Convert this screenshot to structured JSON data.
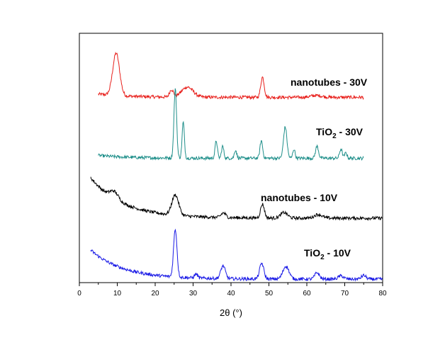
{
  "chart_data": {
    "type": "line",
    "xlabel": "2θ (°)",
    "x_range": [
      0,
      80
    ],
    "x_ticks": [
      0,
      10,
      20,
      30,
      40,
      50,
      60,
      70,
      80
    ],
    "y_ticks_shown": false,
    "grid": false,
    "series": [
      {
        "label_main": "nanotubes - 30V",
        "label_sub": "",
        "label_suffix": "",
        "color": "#e8201c",
        "x_range": [
          5,
          75
        ],
        "baseline_start": 0.55,
        "baseline_end": 0.2,
        "peaks": [
          [
            9.7,
            4.6,
            0.9
          ],
          [
            24.3,
            0.8,
            0.5
          ],
          [
            28.5,
            1.1,
            1.5
          ],
          [
            48.3,
            2.2,
            0.45
          ],
          [
            62.5,
            0.2,
            1.5
          ]
        ]
      },
      {
        "label_main": "TiO",
        "label_sub": "2",
        "label_suffix": " - 30V",
        "color": "#1f8f8a",
        "x_range": [
          5,
          75
        ],
        "baseline_start": 0.5,
        "baseline_end": 0.2,
        "peaks": [
          [
            25.3,
            7.5,
            0.35
          ],
          [
            27.4,
            3.9,
            0.3
          ],
          [
            36.1,
            1.9,
            0.3
          ],
          [
            37.8,
            1.3,
            0.3
          ],
          [
            41.2,
            0.9,
            0.3
          ],
          [
            48.0,
            1.9,
            0.35
          ],
          [
            54.3,
            3.4,
            0.45
          ],
          [
            56.6,
            1.0,
            0.3
          ],
          [
            62.7,
            1.3,
            0.4
          ],
          [
            69.0,
            1.0,
            0.35
          ],
          [
            70.3,
            0.6,
            0.3
          ]
        ]
      },
      {
        "label_main": "nanotubes - 10V",
        "label_sub": "",
        "label_suffix": "",
        "color": "#000000",
        "x_range": [
          3,
          80
        ],
        "baseline_start": 4.4,
        "baseline_end": 0.0,
        "peaks": [
          [
            9.2,
            0.8,
            1.1
          ],
          [
            25.3,
            2.2,
            0.9
          ],
          [
            38.0,
            0.5,
            0.6
          ],
          [
            48.3,
            1.5,
            0.5
          ],
          [
            54.0,
            0.6,
            0.9
          ],
          [
            63.0,
            0.4,
            1.0
          ]
        ]
      },
      {
        "label_main": "TiO",
        "label_sub": "2",
        "label_suffix": " - 10V",
        "color": "#1a1ae6",
        "x_range": [
          3,
          80
        ],
        "baseline_start": 3.3,
        "baseline_end": 0.15,
        "peaks": [
          [
            25.3,
            5.2,
            0.45
          ],
          [
            30.8,
            0.45,
            0.4
          ],
          [
            37.9,
            1.4,
            0.6
          ],
          [
            48.1,
            1.7,
            0.55
          ],
          [
            54.5,
            1.4,
            0.8
          ],
          [
            62.7,
            0.7,
            0.6
          ],
          [
            69.0,
            0.35,
            0.7
          ],
          [
            75.0,
            0.4,
            0.6
          ]
        ]
      }
    ]
  }
}
